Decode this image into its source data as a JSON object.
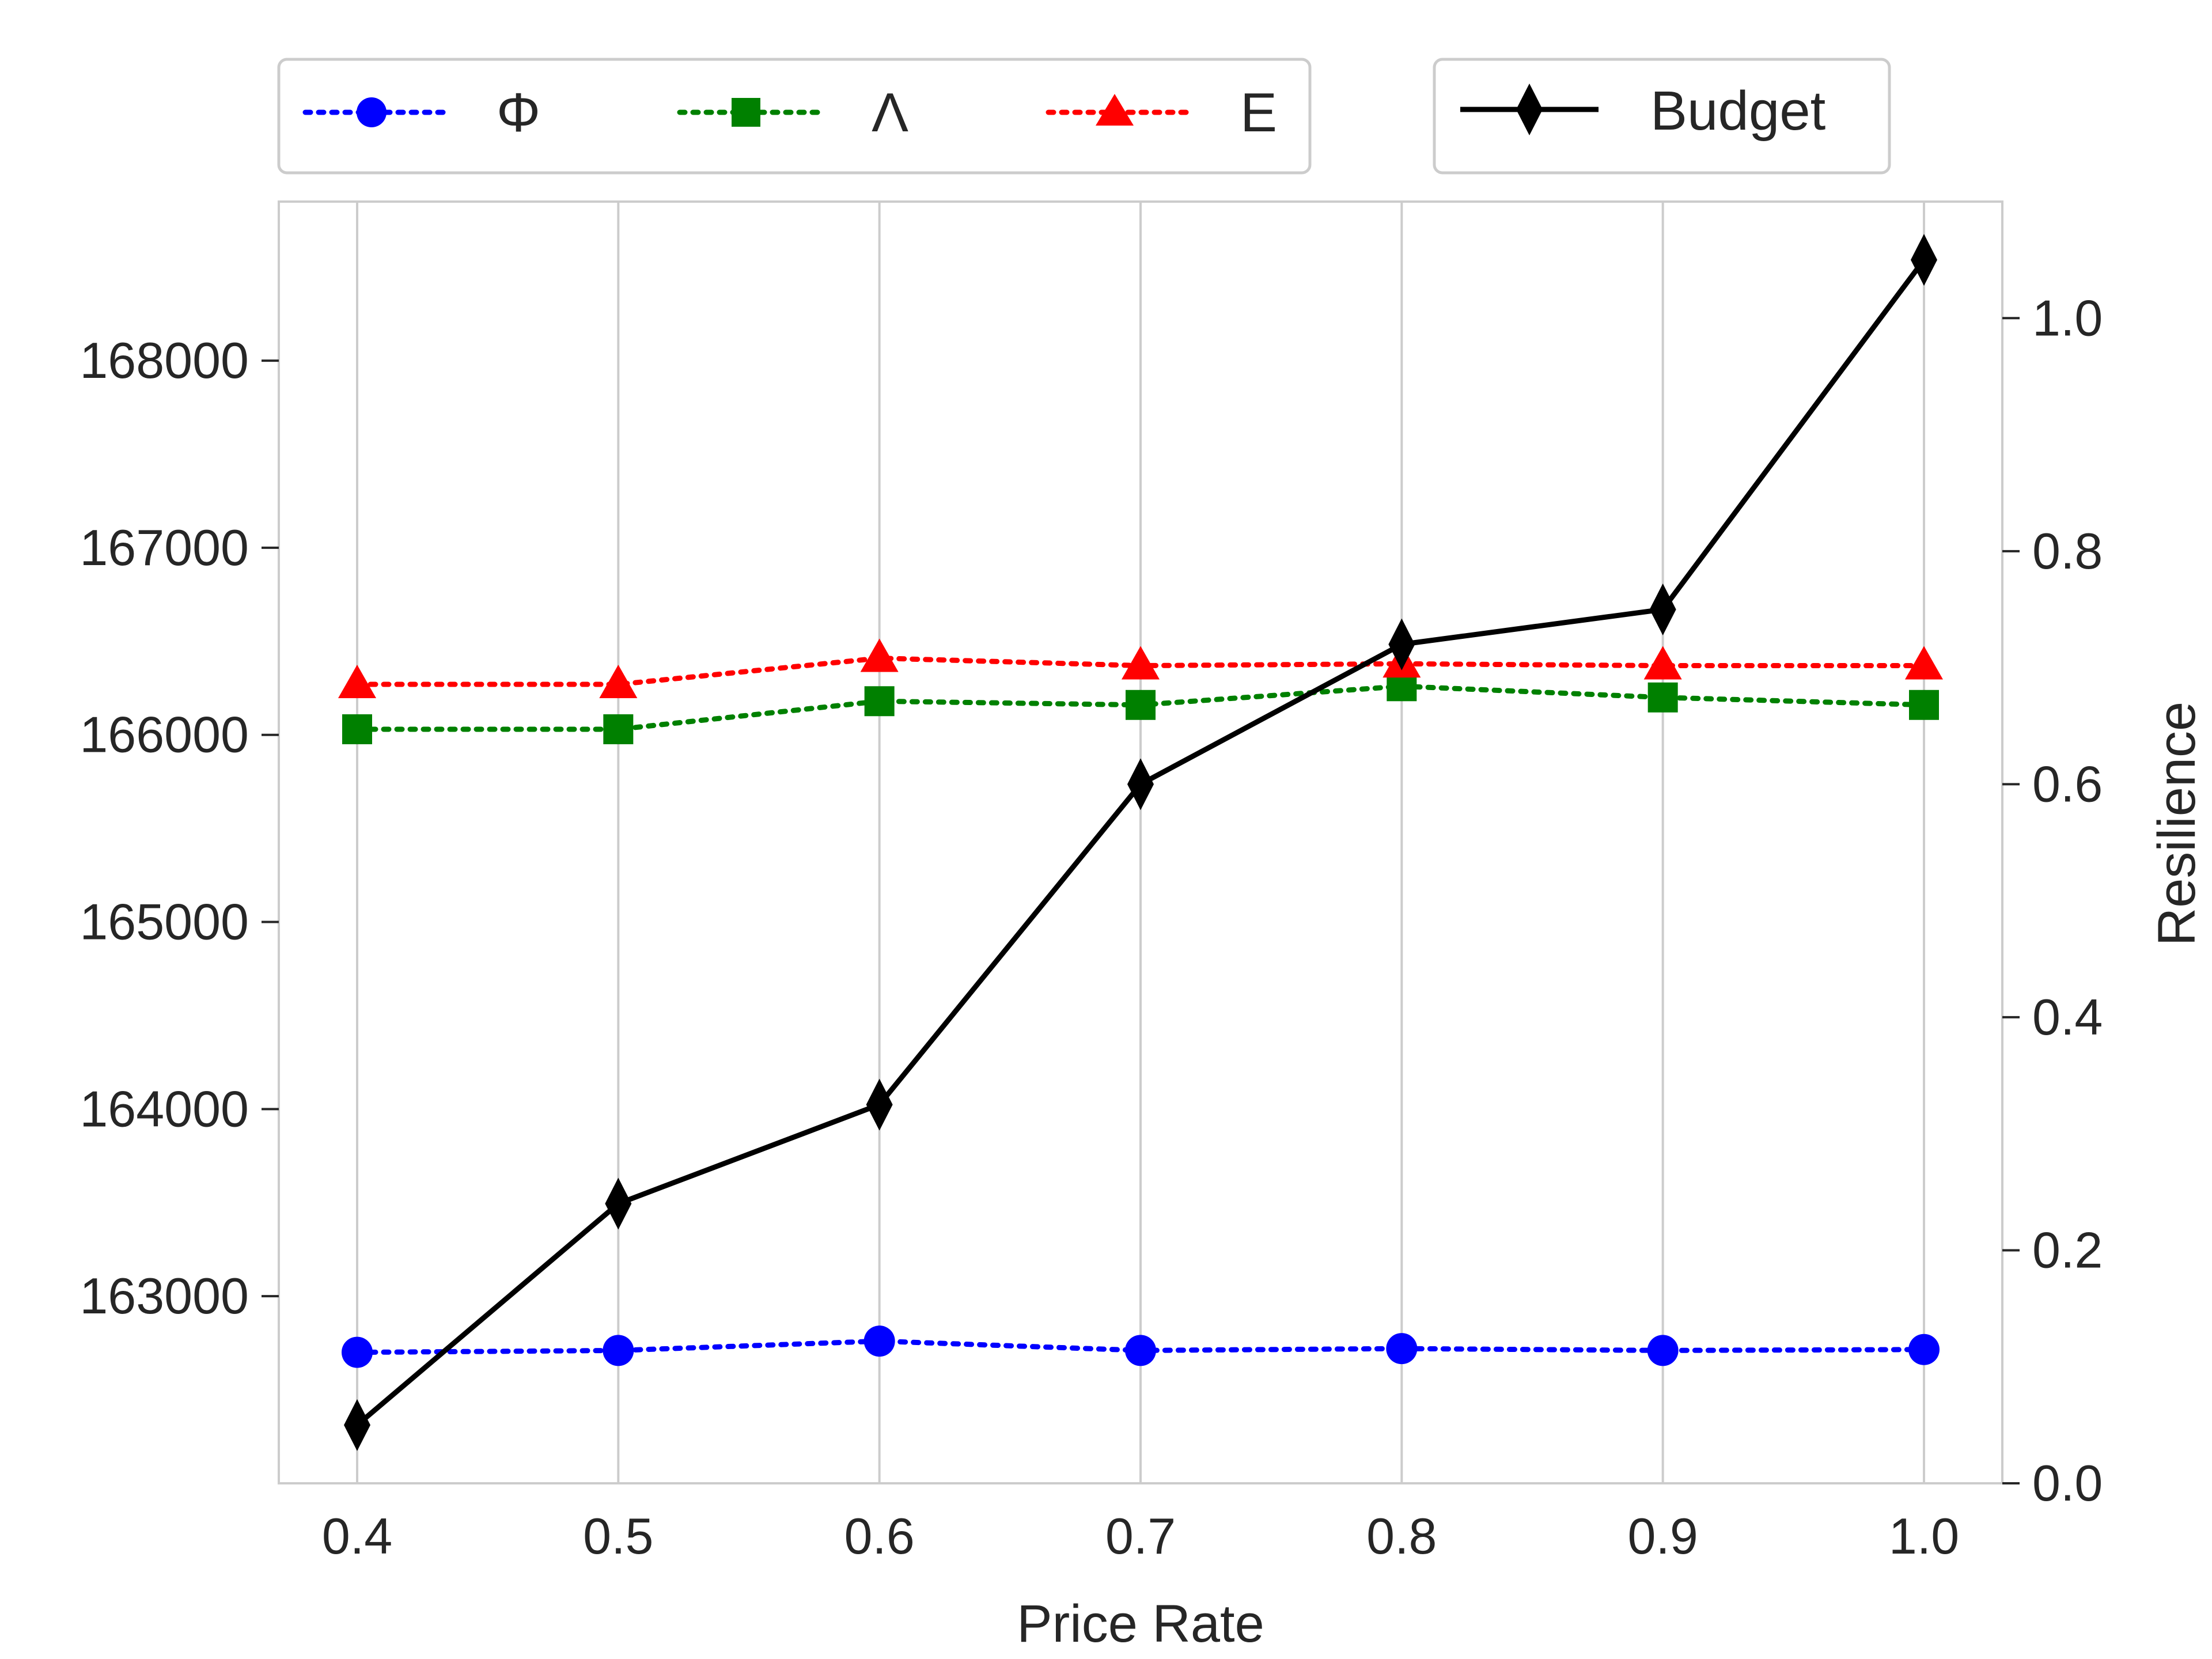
{
  "chart_data": {
    "type": "line",
    "title": "",
    "xlabel": "Price Rate",
    "ylabel_left": "",
    "ylabel_right": "Resilience",
    "x": [
      0.4,
      0.5,
      0.6,
      0.7,
      0.8,
      0.9,
      1.0
    ],
    "x_tick_labels": [
      "0.4",
      "0.5",
      "0.6",
      "0.7",
      "0.8",
      "0.9",
      "1.0"
    ],
    "xlim": [
      0.37,
      1.03
    ],
    "ylim_left": [
      162000,
      168850
    ],
    "yticks_left": [
      "163000",
      "164000",
      "165000",
      "166000",
      "167000",
      "168000"
    ],
    "ylim_right": [
      0.0,
      1.1
    ],
    "yticks_right": [
      "0.0",
      "0.2",
      "0.4",
      "0.6",
      "0.8",
      "1.0"
    ],
    "grid": "vertical",
    "series": [
      {
        "name": "Φ",
        "axis": "left",
        "color": "#0000ff",
        "style": "dotted",
        "marker": "circle",
        "values": [
          162700,
          162710,
          162760,
          162710,
          162720,
          162710,
          162715
        ]
      },
      {
        "name": "Λ",
        "axis": "left",
        "color": "#008000",
        "style": "dotted",
        "marker": "square",
        "values": [
          166030,
          166030,
          166180,
          166160,
          166260,
          166200,
          166160
        ]
      },
      {
        "name": "E",
        "axis": "left",
        "color": "#ff0000",
        "style": "dotted",
        "marker": "triangle",
        "values": [
          166270,
          166270,
          166410,
          166370,
          166380,
          166370,
          166370
        ]
      },
      {
        "name": "Budget",
        "axis": "right",
        "color": "#000000",
        "style": "solid",
        "marker": "diamond",
        "values": [
          0.05,
          0.24,
          0.325,
          0.6,
          0.72,
          0.75,
          1.05
        ]
      }
    ],
    "legend": {
      "placement": "top",
      "groups": [
        [
          "Φ",
          "Λ",
          "E"
        ],
        [
          "Budget"
        ]
      ]
    }
  }
}
